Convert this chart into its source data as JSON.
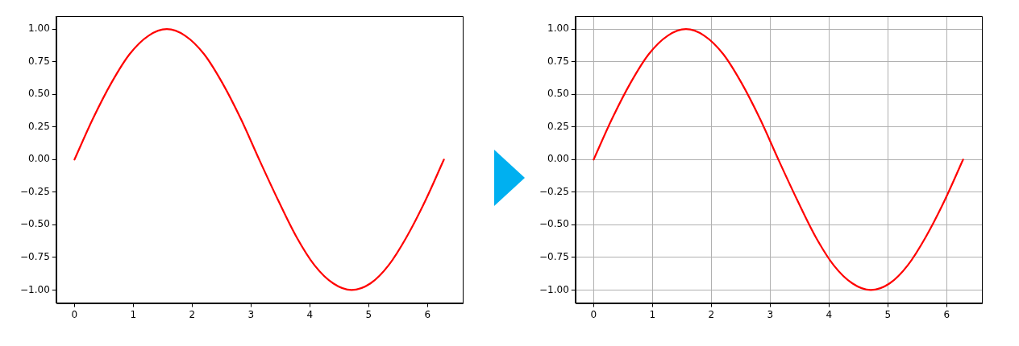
{
  "chart_data": [
    {
      "type": "line",
      "x": [
        0,
        0.31,
        0.63,
        0.94,
        1.26,
        1.57,
        1.88,
        2.2,
        2.51,
        2.83,
        3.14,
        3.46,
        3.77,
        4.08,
        4.4,
        4.71,
        5.03,
        5.34,
        5.65,
        5.97,
        6.28
      ],
      "values": [
        0,
        0.31,
        0.59,
        0.81,
        0.95,
        1,
        0.95,
        0.81,
        0.59,
        0.31,
        0,
        -0.31,
        -0.59,
        -0.81,
        -0.95,
        -1,
        -0.95,
        -0.81,
        -0.59,
        -0.31,
        0
      ],
      "color": "#ff0000",
      "xlim": [
        -0.31,
        6.6
      ],
      "ylim": [
        -1.1,
        1.1
      ],
      "xticks": [
        0,
        1,
        2,
        3,
        4,
        5,
        6
      ],
      "yticks": [
        {
          "value": -1,
          "label": "−1.00"
        },
        {
          "value": -0.75,
          "label": "−0.75"
        },
        {
          "value": -0.5,
          "label": "−0.50"
        },
        {
          "value": -0.25,
          "label": "−0.25"
        },
        {
          "value": 0,
          "label": "0.00"
        },
        {
          "value": 0.25,
          "label": "0.25"
        },
        {
          "value": 0.5,
          "label": "0.50"
        },
        {
          "value": 0.75,
          "label": "0.75"
        },
        {
          "value": 1,
          "label": "1.00"
        }
      ],
      "grid": false
    },
    {
      "type": "line",
      "x": [
        0,
        0.31,
        0.63,
        0.94,
        1.26,
        1.57,
        1.88,
        2.2,
        2.51,
        2.83,
        3.14,
        3.46,
        3.77,
        4.08,
        4.4,
        4.71,
        5.03,
        5.34,
        5.65,
        5.97,
        6.28
      ],
      "values": [
        0,
        0.31,
        0.59,
        0.81,
        0.95,
        1,
        0.95,
        0.81,
        0.59,
        0.31,
        0,
        -0.31,
        -0.59,
        -0.81,
        -0.95,
        -1,
        -0.95,
        -0.81,
        -0.59,
        -0.31,
        0
      ],
      "color": "#ff0000",
      "xlim": [
        -0.31,
        6.6
      ],
      "ylim": [
        -1.1,
        1.1
      ],
      "xticks": [
        0,
        1,
        2,
        3,
        4,
        5,
        6
      ],
      "yticks": [
        {
          "value": -1,
          "label": "−1.00"
        },
        {
          "value": -0.75,
          "label": "−0.75"
        },
        {
          "value": -0.5,
          "label": "−0.50"
        },
        {
          "value": -0.25,
          "label": "−0.25"
        },
        {
          "value": 0,
          "label": "0.00"
        },
        {
          "value": 0.25,
          "label": "0.25"
        },
        {
          "value": 0.5,
          "label": "0.50"
        },
        {
          "value": 0.75,
          "label": "0.75"
        },
        {
          "value": 1,
          "label": "1.00"
        }
      ],
      "grid": true
    }
  ]
}
